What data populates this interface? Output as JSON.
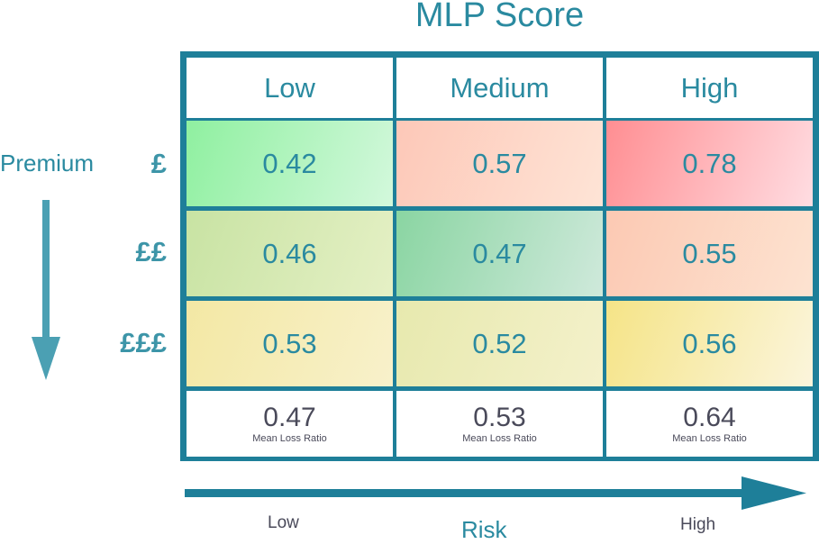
{
  "chart_data": {
    "type": "heatmap",
    "title": "MLP Score",
    "x_axis": {
      "label": "Risk",
      "start_label": "Low",
      "end_label": "High"
    },
    "y_axis": {
      "label": "Premium"
    },
    "columns": [
      "Low",
      "Medium",
      "High"
    ],
    "rows": [
      "£",
      "££",
      "£££"
    ],
    "values": [
      [
        0.42,
        0.57,
        0.78
      ],
      [
        0.46,
        0.47,
        0.55
      ],
      [
        0.53,
        0.52,
        0.56
      ]
    ],
    "column_means": [
      0.47,
      0.53,
      0.64
    ],
    "mean_label": "Mean Loss Ratio",
    "cell_colors": [
      [
        [
          "#8ff0a0",
          "#d3f8dc"
        ],
        [
          "#fdc8b8",
          "#fee4d6"
        ],
        [
          "#ff8e92",
          "#ffdde2"
        ]
      ],
      [
        [
          "#c8e3a3",
          "#e5f0c5"
        ],
        [
          "#8ad5a2",
          "#cfe9db"
        ],
        [
          "#fcc9b3",
          "#fde3d1"
        ]
      ],
      [
        [
          "#f3e8a4",
          "#f8f1cb"
        ],
        [
          "#e7e9ae",
          "#f4f1cb"
        ],
        [
          "#f5e487",
          "#fbf5dc"
        ]
      ]
    ],
    "grid": true
  },
  "colors": {
    "accent": "#2a8aa0",
    "border": "#1e7f99",
    "arrow": "#1e7f99",
    "premium_arrow": "#4ba0b3"
  }
}
